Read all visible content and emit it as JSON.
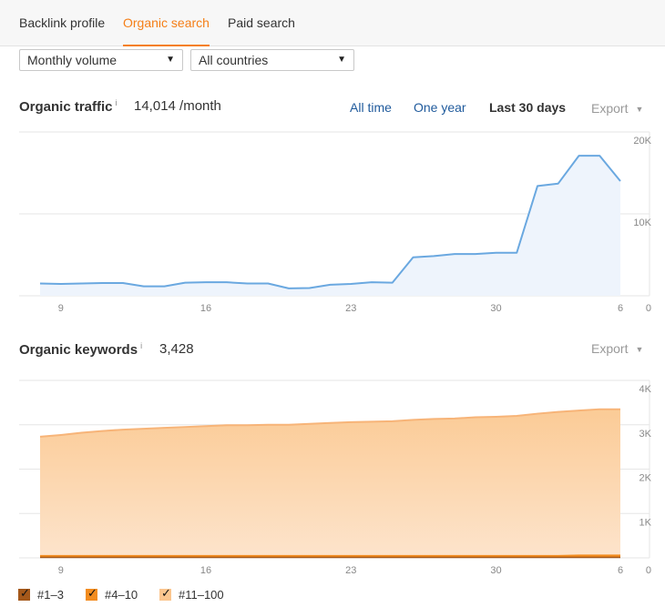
{
  "tabs": [
    {
      "label": "Backlink profile",
      "active": false
    },
    {
      "label": "Organic search",
      "active": true
    },
    {
      "label": "Paid search",
      "active": false
    }
  ],
  "filters": {
    "volume": {
      "value": "Monthly volume"
    },
    "country": {
      "value": "All countries"
    }
  },
  "organic_traffic": {
    "title": "Organic traffic",
    "info": "i",
    "value": "14,014 /month",
    "ranges": [
      "All time",
      "One year",
      "Last 30 days"
    ],
    "active_range": "Last 30 days",
    "export_label": "Export"
  },
  "organic_keywords": {
    "title": "Organic keywords",
    "info": "i",
    "value": "3,428",
    "export_label": "Export"
  },
  "legend": [
    {
      "label": "#1–3",
      "checked": true,
      "color": "#a4581a"
    },
    {
      "label": "#4–10",
      "checked": true,
      "color": "#f28c1f"
    },
    {
      "label": "#11–100",
      "checked": true,
      "color": "#fbc68f"
    }
  ],
  "chart_data": [
    {
      "type": "area",
      "x_ticks": [
        "9",
        "16",
        "23",
        "30",
        "6"
      ],
      "y_ticks": [
        "20K",
        "10K",
        "0"
      ],
      "ylim": [
        0,
        20000
      ],
      "x": [
        8,
        9,
        10,
        11,
        12,
        13,
        14,
        15,
        16,
        17,
        18,
        19,
        20,
        21,
        22,
        23,
        24,
        25,
        26,
        27,
        28,
        29,
        30,
        31,
        32,
        33,
        34,
        35,
        36
      ],
      "series": [
        {
          "color": "#6aa8e0",
          "fill": "#eef4fc",
          "values": [
            1500,
            1450,
            1500,
            1550,
            1550,
            1150,
            1150,
            1600,
            1650,
            1650,
            1500,
            1500,
            900,
            950,
            1350,
            1450,
            1650,
            1600,
            4700,
            4850,
            5100,
            5100,
            5250,
            5250,
            13400,
            13700,
            17100,
            17100,
            14000
          ]
        }
      ],
      "grid": true
    },
    {
      "type": "area",
      "x_ticks": [
        "9",
        "16",
        "23",
        "30",
        "6"
      ],
      "y_ticks": [
        "4K",
        "3K",
        "2K",
        "1K",
        "0"
      ],
      "ylim": [
        0,
        4000
      ],
      "x": [
        8,
        9,
        10,
        11,
        12,
        13,
        14,
        15,
        16,
        17,
        18,
        19,
        20,
        21,
        22,
        23,
        24,
        25,
        26,
        27,
        28,
        29,
        30,
        31,
        32,
        33,
        34,
        35,
        36
      ],
      "series": [
        {
          "name": "#11–100",
          "color": "#f7b478",
          "values": [
            2730,
            2770,
            2820,
            2860,
            2890,
            2910,
            2930,
            2950,
            2970,
            2990,
            2990,
            3000,
            3000,
            3020,
            3040,
            3060,
            3070,
            3080,
            3110,
            3130,
            3140,
            3170,
            3180,
            3200,
            3250,
            3290,
            3320,
            3350,
            3350
          ]
        },
        {
          "name": "#4–10",
          "color": "#f28c1f",
          "values": [
            50,
            50,
            50,
            50,
            50,
            50,
            50,
            50,
            50,
            50,
            50,
            50,
            50,
            50,
            50,
            50,
            50,
            50,
            50,
            50,
            50,
            50,
            50,
            50,
            50,
            50,
            60,
            60,
            60
          ]
        },
        {
          "name": "#1–3",
          "color": "#a4581a",
          "values": [
            10,
            10,
            10,
            10,
            10,
            10,
            10,
            10,
            10,
            10,
            10,
            10,
            10,
            10,
            10,
            10,
            10,
            10,
            10,
            10,
            10,
            10,
            10,
            10,
            10,
            10,
            10,
            10,
            10
          ]
        }
      ],
      "grid": true
    }
  ]
}
